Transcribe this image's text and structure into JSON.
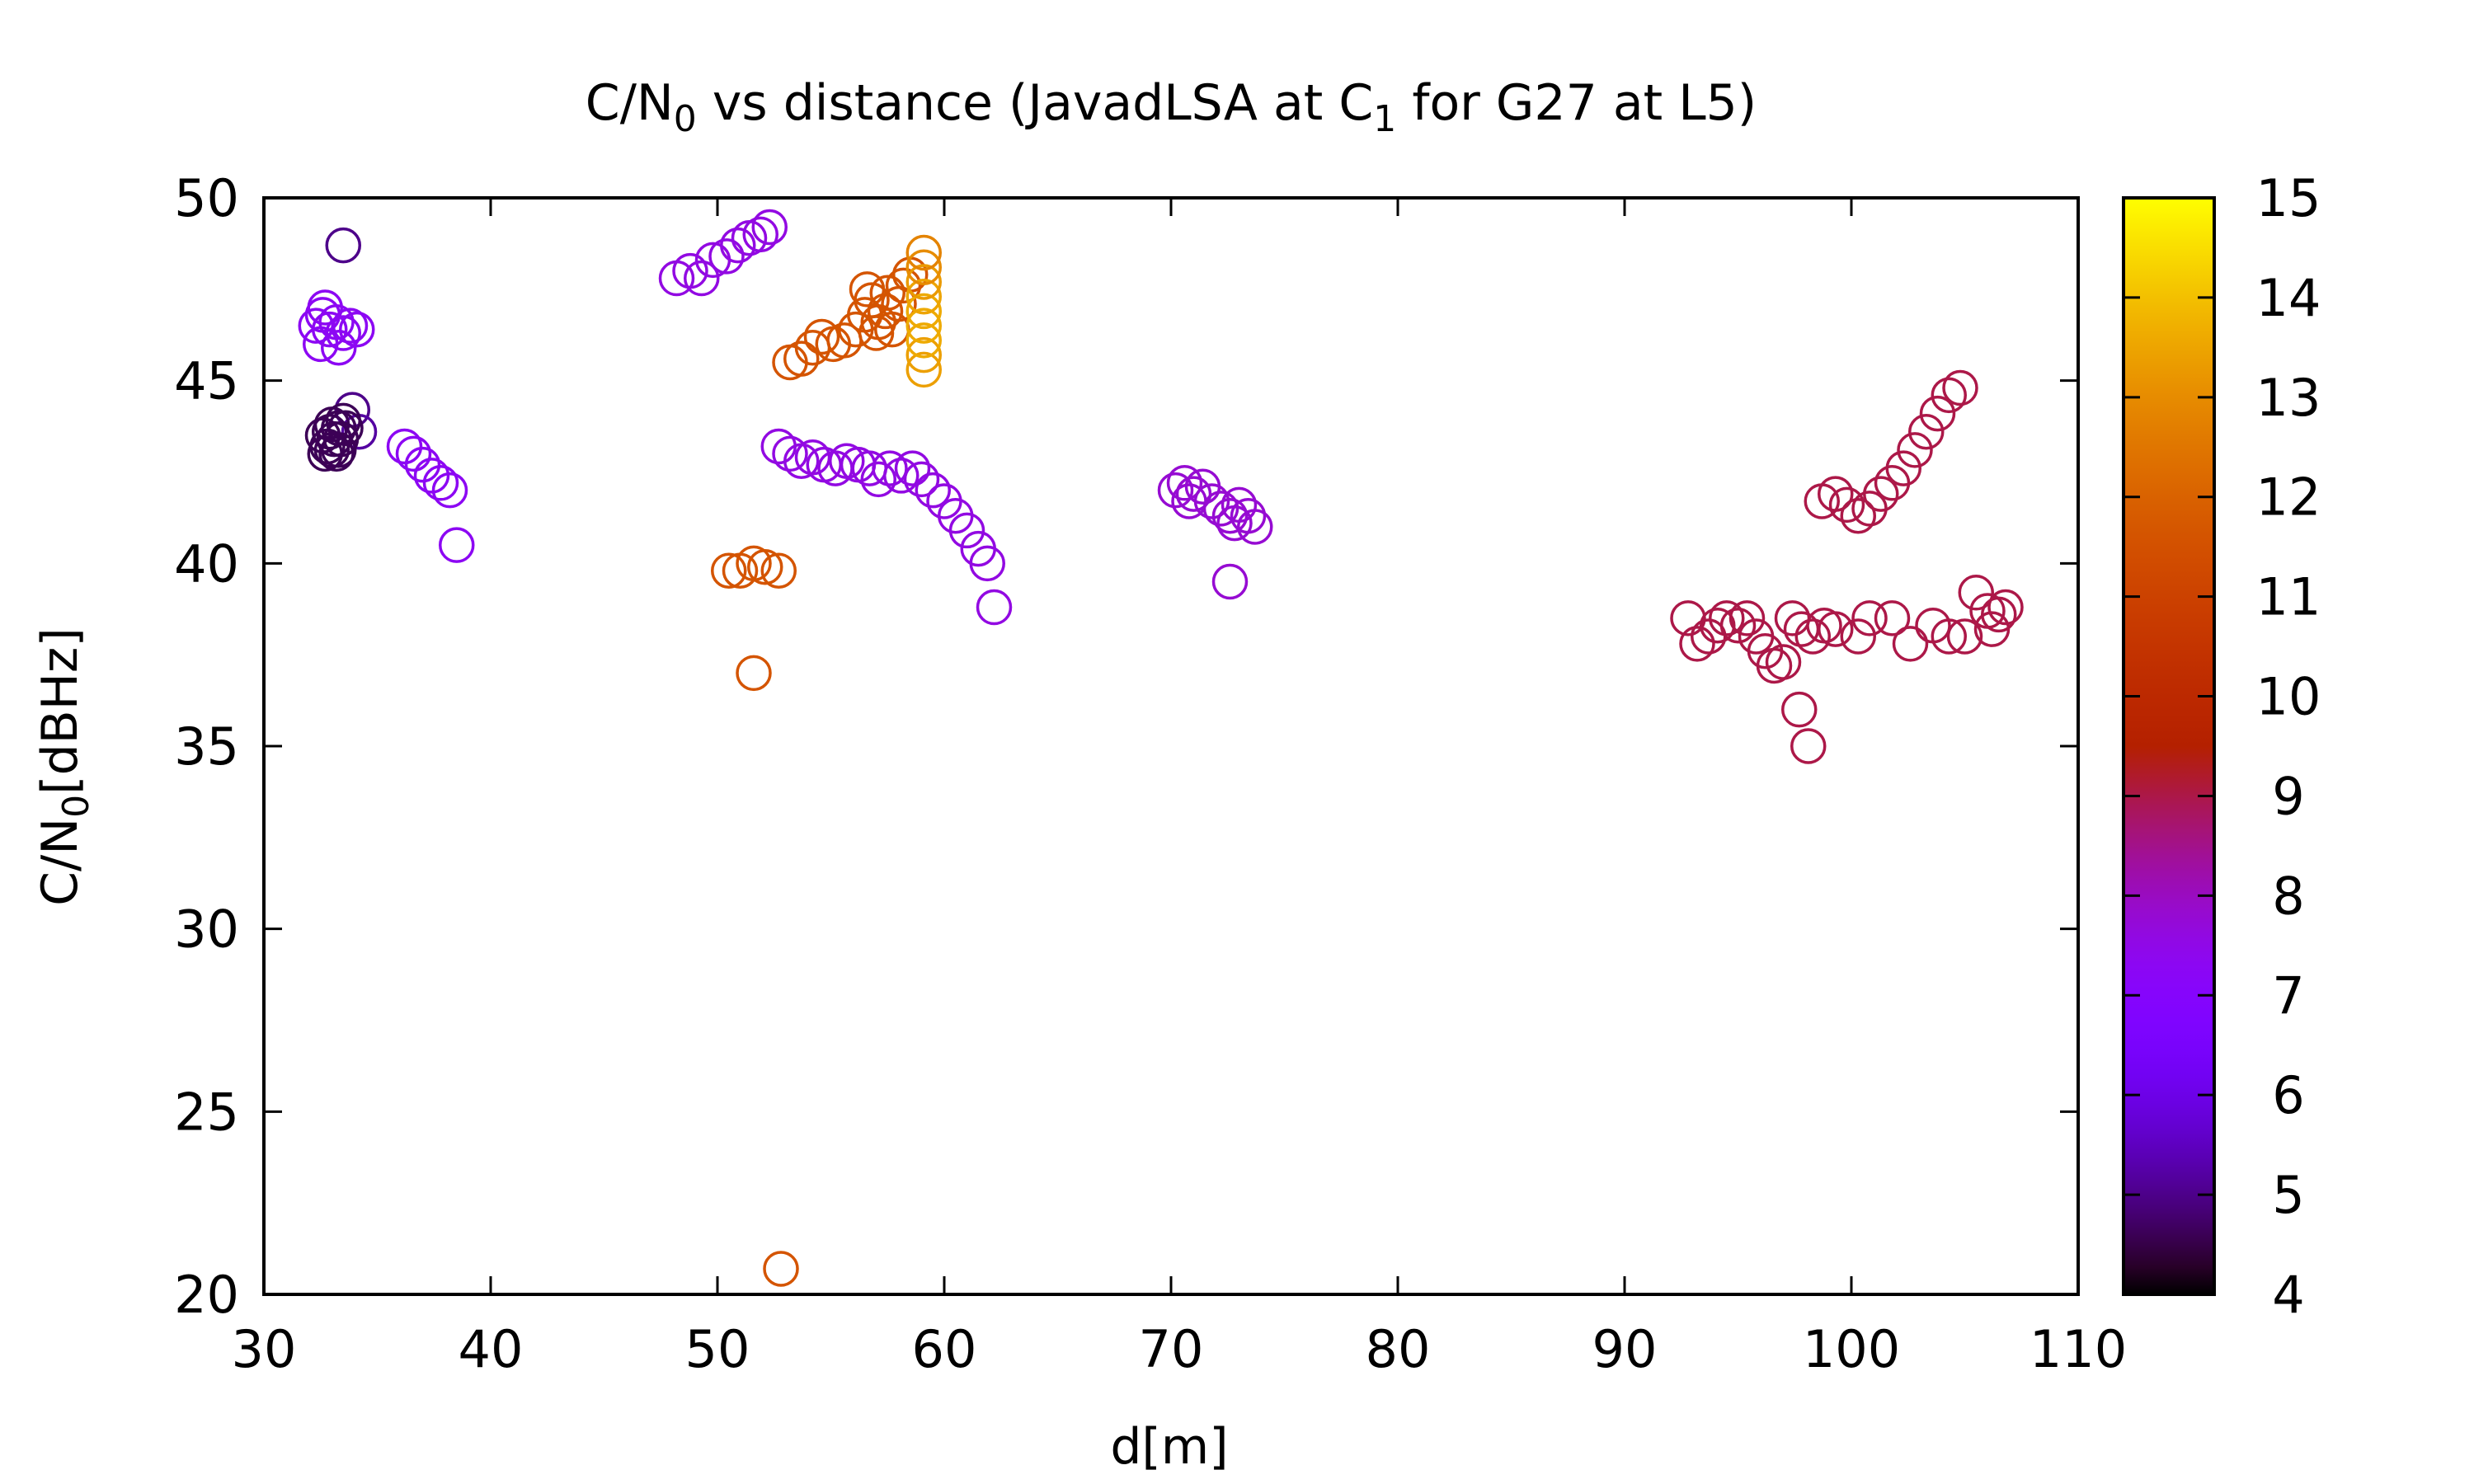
{
  "chart_data": {
    "type": "scatter",
    "title": {
      "prefix": "C/N",
      "sub1": "0",
      "mid": " vs distance (JavadLSA at C",
      "sub2": "1",
      "suffix": " for G27 at L5)"
    },
    "xlabel": "d[m]",
    "ylabel": {
      "prefix": "C/N",
      "sub": "0",
      "suffix": "[dBHz]"
    },
    "xlim": [
      30,
      110
    ],
    "ylim": [
      20,
      50
    ],
    "x_ticks": [
      "30",
      "40",
      "50",
      "60",
      "70",
      "80",
      "90",
      "100",
      "110"
    ],
    "y_ticks": [
      "20",
      "25",
      "30",
      "35",
      "40",
      "45",
      "50"
    ],
    "colorbar": {
      "range": [
        4,
        15
      ],
      "ticks": [
        "4",
        "5",
        "6",
        "7",
        "8",
        "9",
        "10",
        "11",
        "12",
        "13",
        "14",
        "15"
      ],
      "palette": "gnuplot"
    },
    "marker": "open-circle",
    "grid": false,
    "points": [
      [
        32.3,
        46.5,
        7.3
      ],
      [
        32.6,
        46.8,
        7.3
      ],
      [
        32.9,
        46.4,
        7.3
      ],
      [
        32.5,
        46.0,
        7.3
      ],
      [
        33.2,
        46.6,
        7.3
      ],
      [
        33.5,
        46.3,
        7.3
      ],
      [
        33.8,
        46.5,
        7.3
      ],
      [
        34.1,
        46.4,
        7.3
      ],
      [
        32.7,
        47.0,
        7.3
      ],
      [
        33.3,
        45.9,
        7.3
      ],
      [
        33.5,
        48.7,
        5.0
      ],
      [
        33.9,
        44.2,
        5.0
      ],
      [
        34.2,
        43.6,
        5.2
      ],
      [
        32.6,
        43.5,
        4.6
      ],
      [
        32.8,
        43.2,
        4.6
      ],
      [
        33.0,
        43.8,
        4.6
      ],
      [
        33.2,
        43.0,
        4.6
      ],
      [
        33.4,
        43.4,
        4.6
      ],
      [
        33.6,
        43.7,
        4.6
      ],
      [
        32.9,
        43.6,
        4.6
      ],
      [
        33.3,
        43.1,
        4.6
      ],
      [
        33.5,
        43.9,
        4.6
      ],
      [
        32.7,
        43.0,
        4.6
      ],
      [
        33.1,
        43.4,
        4.6
      ],
      [
        33.3,
        43.7,
        4.6
      ],
      [
        33.0,
        43.1,
        4.6
      ],
      [
        36.2,
        43.2,
        7.3
      ],
      [
        36.6,
        43.0,
        7.3
      ],
      [
        37.0,
        42.7,
        7.3
      ],
      [
        37.4,
        42.4,
        7.3
      ],
      [
        37.8,
        42.2,
        7.3
      ],
      [
        38.2,
        42.0,
        7.3
      ],
      [
        38.5,
        40.5,
        7.3
      ],
      [
        48.2,
        47.8,
        7.6
      ],
      [
        48.8,
        48.0,
        7.6
      ],
      [
        49.3,
        47.8,
        7.6
      ],
      [
        49.8,
        48.3,
        7.6
      ],
      [
        50.4,
        48.4,
        7.6
      ],
      [
        50.9,
        48.7,
        7.6
      ],
      [
        51.4,
        48.9,
        7.6
      ],
      [
        51.9,
        49.0,
        7.6
      ],
      [
        52.3,
        49.2,
        7.6
      ],
      [
        52.7,
        43.2,
        7.6
      ],
      [
        53.2,
        43.0,
        7.6
      ],
      [
        53.7,
        42.8,
        7.6
      ],
      [
        54.2,
        42.9,
        7.6
      ],
      [
        54.7,
        42.7,
        7.6
      ],
      [
        55.2,
        42.6,
        7.6
      ],
      [
        55.7,
        42.8,
        7.6
      ],
      [
        56.2,
        42.7,
        7.6
      ],
      [
        56.7,
        42.6,
        7.6
      ],
      [
        57.1,
        42.3,
        7.6
      ],
      [
        57.6,
        42.6,
        7.6
      ],
      [
        58.1,
        42.4,
        7.6
      ],
      [
        58.6,
        42.6,
        7.6
      ],
      [
        59.0,
        42.3,
        7.6
      ],
      [
        59.5,
        42.0,
        7.6
      ],
      [
        60.0,
        41.7,
        7.6
      ],
      [
        60.5,
        41.3,
        7.6
      ],
      [
        61.0,
        40.9,
        7.6
      ],
      [
        61.5,
        40.4,
        7.6
      ],
      [
        61.9,
        40.0,
        7.6
      ],
      [
        62.2,
        38.8,
        7.6
      ],
      [
        53.2,
        45.5,
        11.6
      ],
      [
        53.7,
        45.6,
        11.6
      ],
      [
        54.2,
        45.9,
        11.6
      ],
      [
        54.6,
        46.2,
        11.6
      ],
      [
        55.1,
        46.0,
        11.6
      ],
      [
        55.6,
        46.1,
        11.6
      ],
      [
        56.1,
        46.4,
        11.6
      ],
      [
        56.5,
        46.8,
        11.6
      ],
      [
        56.8,
        47.2,
        11.6
      ],
      [
        57.1,
        46.6,
        11.6
      ],
      [
        57.4,
        46.9,
        11.6
      ],
      [
        57.7,
        46.4,
        11.6
      ],
      [
        58.0,
        47.1,
        11.6
      ],
      [
        58.2,
        47.6,
        11.6
      ],
      [
        58.5,
        47.9,
        11.6
      ],
      [
        56.6,
        47.5,
        11.6
      ],
      [
        57.0,
        46.3,
        11.6
      ],
      [
        57.5,
        47.4,
        11.6
      ],
      [
        59.1,
        45.3,
        13.4
      ],
      [
        59.1,
        45.7,
        13.4
      ],
      [
        59.1,
        46.1,
        13.6
      ],
      [
        59.1,
        46.5,
        13.6
      ],
      [
        59.1,
        46.9,
        13.6
      ],
      [
        59.1,
        47.3,
        13.5
      ],
      [
        59.1,
        47.7,
        13.3
      ],
      [
        59.1,
        48.1,
        13.0
      ],
      [
        59.1,
        48.5,
        12.8
      ],
      [
        50.5,
        39.8,
        11.6
      ],
      [
        51.0,
        39.8,
        11.6
      ],
      [
        51.6,
        40.0,
        11.6
      ],
      [
        52.1,
        39.9,
        11.6
      ],
      [
        52.7,
        39.8,
        11.6
      ],
      [
        51.6,
        37.0,
        11.6
      ],
      [
        52.8,
        20.7,
        11.6
      ],
      [
        70.2,
        42.0,
        7.8
      ],
      [
        70.6,
        42.2,
        7.8
      ],
      [
        71.0,
        41.9,
        7.8
      ],
      [
        71.4,
        42.1,
        7.8
      ],
      [
        71.8,
        41.7,
        7.8
      ],
      [
        72.2,
        41.5,
        7.8
      ],
      [
        72.6,
        41.3,
        7.8
      ],
      [
        73.0,
        41.6,
        7.8
      ],
      [
        73.4,
        41.3,
        7.8
      ],
      [
        73.7,
        41.0,
        7.8
      ],
      [
        70.8,
        41.7,
        7.8
      ],
      [
        72.8,
        41.1,
        7.8
      ],
      [
        72.6,
        39.5,
        7.8
      ],
      [
        98.7,
        41.7,
        9.0
      ],
      [
        99.3,
        41.9,
        9.0
      ],
      [
        99.8,
        41.6,
        9.0
      ],
      [
        100.3,
        41.3,
        9.0
      ],
      [
        100.8,
        41.5,
        9.0
      ],
      [
        101.3,
        41.9,
        9.0
      ],
      [
        101.8,
        42.2,
        9.0
      ],
      [
        102.3,
        42.6,
        9.0
      ],
      [
        102.8,
        43.1,
        9.0
      ],
      [
        103.3,
        43.6,
        9.0
      ],
      [
        103.8,
        44.1,
        9.0
      ],
      [
        104.3,
        44.6,
        9.0
      ],
      [
        104.8,
        44.8,
        9.0
      ],
      [
        92.8,
        38.5,
        9.0
      ],
      [
        93.2,
        37.8,
        9.0
      ],
      [
        93.7,
        38.0,
        9.0
      ],
      [
        94.1,
        38.3,
        9.0
      ],
      [
        94.5,
        38.5,
        9.0
      ],
      [
        95.0,
        38.3,
        9.0
      ],
      [
        95.4,
        38.5,
        9.0
      ],
      [
        95.8,
        38.0,
        9.0
      ],
      [
        96.2,
        37.6,
        9.0
      ],
      [
        96.6,
        37.2,
        9.0
      ],
      [
        97.0,
        37.3,
        9.0
      ],
      [
        97.4,
        38.5,
        9.0
      ],
      [
        97.8,
        38.2,
        9.0
      ],
      [
        98.3,
        38.0,
        9.0
      ],
      [
        98.8,
        38.3,
        9.0
      ],
      [
        99.3,
        38.2,
        9.0
      ],
      [
        100.3,
        38.0,
        9.0
      ],
      [
        100.8,
        38.5,
        9.0
      ],
      [
        101.8,
        38.5,
        9.0
      ],
      [
        102.6,
        37.8,
        9.0
      ],
      [
        103.6,
        38.3,
        9.0
      ],
      [
        104.3,
        38.0,
        9.0
      ],
      [
        105.0,
        38.0,
        9.0
      ],
      [
        105.5,
        39.2,
        9.0
      ],
      [
        106.0,
        38.7,
        9.0
      ],
      [
        106.5,
        38.6,
        9.0
      ],
      [
        106.8,
        38.8,
        9.0
      ],
      [
        106.2,
        38.2,
        9.0
      ],
      [
        97.7,
        36.0,
        9.0
      ],
      [
        98.1,
        35.0,
        9.0
      ]
    ]
  }
}
